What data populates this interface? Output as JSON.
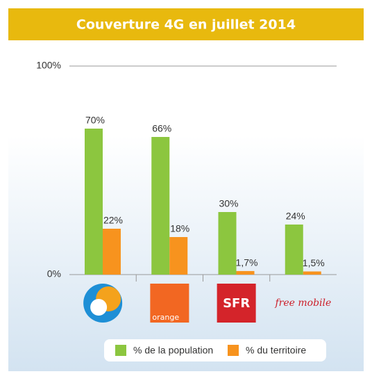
{
  "chart_data": {
    "type": "bar",
    "title": "Couverture 4G en juillet 2014",
    "categories": [
      null,
      "orange",
      "SFR",
      "free mobile"
    ],
    "series": [
      {
        "name": "% de la population",
        "color": "#8cc63f",
        "values": [
          70,
          66,
          30,
          24
        ],
        "value_labels": [
          "70%",
          "66%",
          "30%",
          "24%"
        ]
      },
      {
        "name": "% du territoire",
        "color": "#f7931e",
        "values": [
          22,
          18,
          1.7,
          1.5
        ],
        "value_labels": [
          "22%",
          "18%",
          "1,7%",
          "1,5%"
        ]
      }
    ],
    "ylim": [
      0,
      100
    ],
    "yticks": [
      {
        "value": 0,
        "label": "0%"
      },
      {
        "value": 100,
        "label": "100%"
      }
    ],
    "grid": true,
    "legend": "bottom"
  }
}
